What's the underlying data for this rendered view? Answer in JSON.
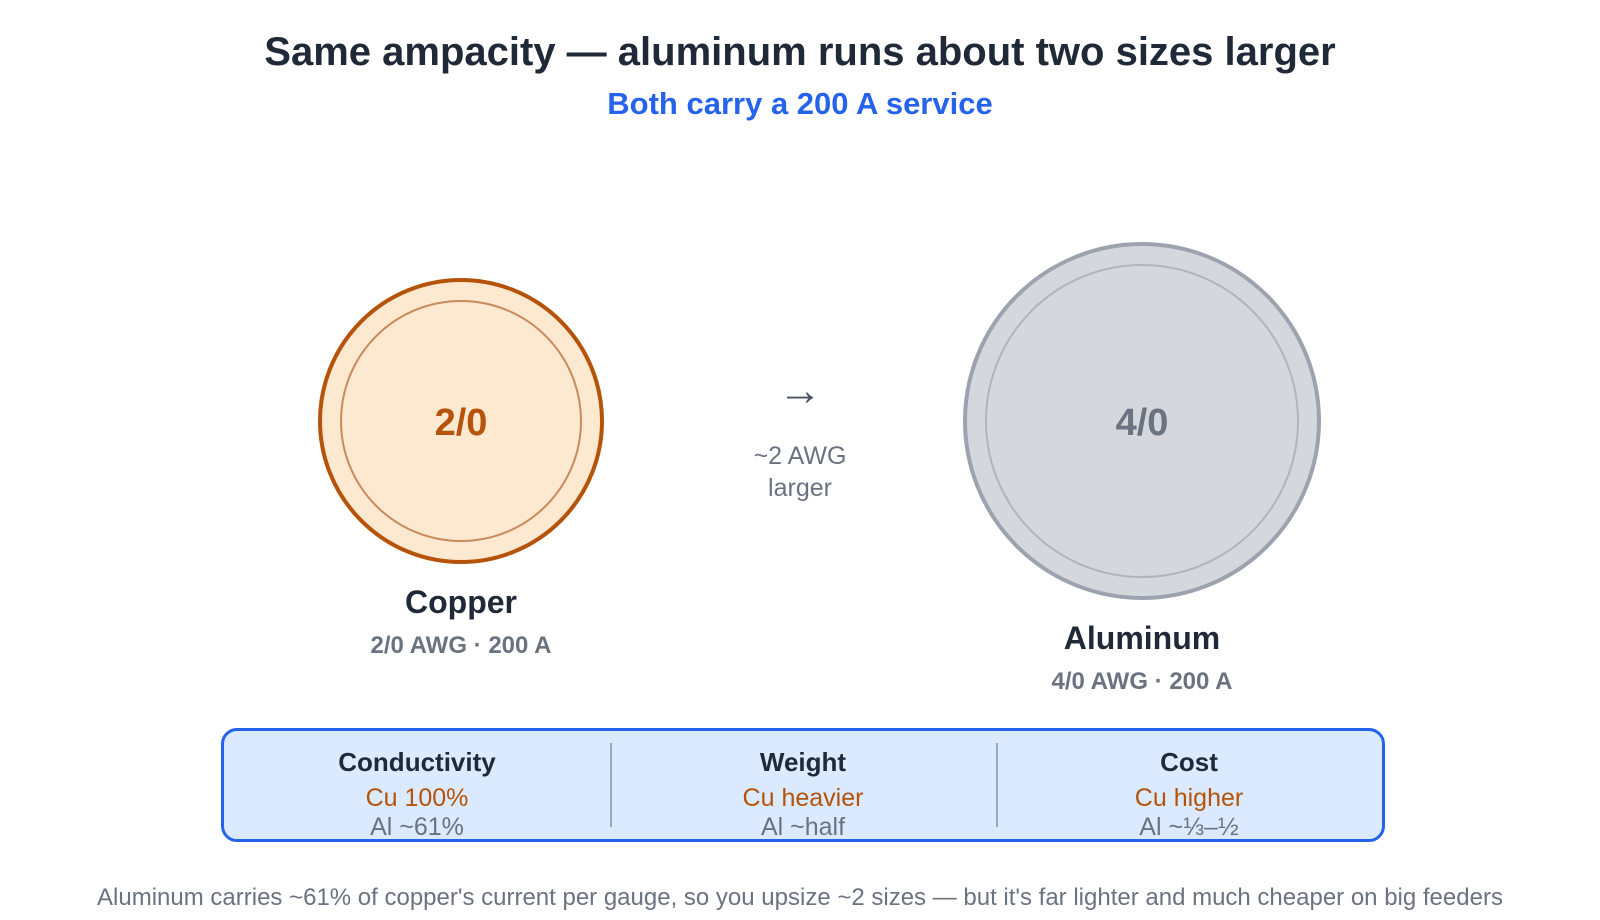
{
  "title": "Same ampacity — aluminum runs about two sizes larger",
  "subtitle": "Both carry a 200 A service",
  "wires": {
    "copper": {
      "gauge": "2/0",
      "name": "Copper",
      "spec": "2/0 AWG · 200 A",
      "fill": "#fde8d0",
      "stroke": "#b45309",
      "text_color": "#b45309"
    },
    "aluminum": {
      "gauge": "4/0",
      "name": "Aluminum",
      "spec": "4/0 AWG · 200 A",
      "fill": "#d4d7dc",
      "stroke": "#9ca3af",
      "text_color": "#6b7280"
    }
  },
  "arrow": {
    "glyph": "→",
    "note_line1": "~2 AWG",
    "note_line2": "larger"
  },
  "comparison": [
    {
      "heading": "Conductivity",
      "cu": "Cu 100%",
      "al": "Al ~61%"
    },
    {
      "heading": "Weight",
      "cu": "Cu heavier",
      "al": "Al ~half"
    },
    {
      "heading": "Cost",
      "cu": "Cu higher",
      "al": "Al ~⅓–½"
    }
  ],
  "footnote": "Aluminum carries ~61% of copper's current per gauge, so you upsize ~2 sizes — but it's far lighter and much cheaper on big feeders"
}
